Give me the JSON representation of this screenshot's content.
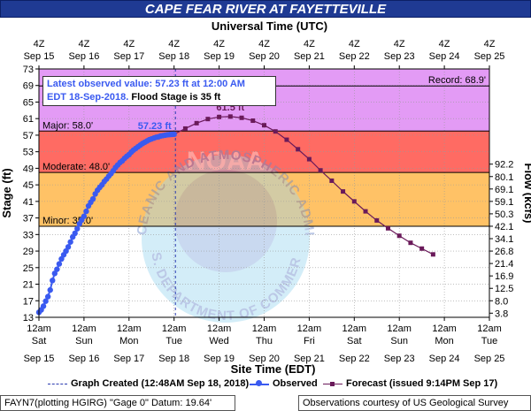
{
  "header": {
    "title": "CAPE FEAR RIVER AT FAYETTEVILLE",
    "title_bg": "#1f3a93"
  },
  "info_box": {
    "line1": "Latest observed value: 57.23 ft at 12:00 AM",
    "line2": "EDT 18-Sep-2018.",
    "line2b": "Flood Stage is 35 ft"
  },
  "watermark": {
    "center_text": "NOAA",
    "arc_top": "NATIONAL OCEANIC AND ATMOSPHERIC ADMINISTRATION",
    "arc_bottom": "U.S. DEPARTMENT OF COMMERCE"
  },
  "footer": {
    "legend_graph_created": "Graph Created (12:48AM Sep 18, 2018)",
    "legend_observed": "Observed",
    "legend_forecast": "Forecast (issued 9:14PM Sep 17)",
    "gauge_info": "FAYN7(plotting HGIRG) \"Gage 0\" Datum: 19.64'",
    "credit": "Observations courtesy of US Geological Survey"
  },
  "chart_data": {
    "type": "line",
    "title": "CAPE FEAR RIVER AT FAYETTEVILLE",
    "top_axis_title": "Universal Time (UTC)",
    "bottom_axis_title": "Site Time (EDT)",
    "ylabel_left": "Stage (ft)",
    "ylabel_right": "Flow (kcfs)",
    "ylim": [
      13,
      73
    ],
    "y_ticks": [
      13,
      17,
      21,
      25,
      29,
      33,
      37,
      41,
      45,
      49,
      53,
      57,
      61,
      65,
      69,
      73
    ],
    "right_axis_ticks": [
      {
        "stage": 14,
        "label": "3.8"
      },
      {
        "stage": 17,
        "label": "8.0"
      },
      {
        "stage": 20,
        "label": "12.5"
      },
      {
        "stage": 23,
        "label": "16.9"
      },
      {
        "stage": 26,
        "label": "21.4"
      },
      {
        "stage": 29,
        "label": "26.8"
      },
      {
        "stage": 32,
        "label": "34.1"
      },
      {
        "stage": 35,
        "label": "42.1"
      },
      {
        "stage": 38,
        "label": "50.3"
      },
      {
        "stage": 41,
        "label": "59.1"
      },
      {
        "stage": 44,
        "label": "69.1"
      },
      {
        "stage": 47,
        "label": "80.1"
      },
      {
        "stage": 50,
        "label": "92.2"
      }
    ],
    "x_days": [
      {
        "top1": "4Z",
        "top2": "Sep 15",
        "b1": "12am",
        "b2": "Sat",
        "b3": "Sep 15"
      },
      {
        "top1": "4Z",
        "top2": "Sep 16",
        "b1": "12am",
        "b2": "Sun",
        "b3": "Sep 16"
      },
      {
        "top1": "4Z",
        "top2": "Sep 17",
        "b1": "12am",
        "b2": "Mon",
        "b3": "Sep 17"
      },
      {
        "top1": "4Z",
        "top2": "Sep 18",
        "b1": "12am",
        "b2": "Tue",
        "b3": "Sep 18"
      },
      {
        "top1": "4Z",
        "top2": "Sep 19",
        "b1": "12am",
        "b2": "Wed",
        "b3": "Sep 19"
      },
      {
        "top1": "4Z",
        "top2": "Sep 20",
        "b1": "12am",
        "b2": "Thu",
        "b3": "Sep 20"
      },
      {
        "top1": "4Z",
        "top2": "Sep 21",
        "b1": "12am",
        "b2": "Fri",
        "b3": "Sep 21"
      },
      {
        "top1": "4Z",
        "top2": "Sep 22",
        "b1": "12am",
        "b2": "Sat",
        "b3": "Sep 22"
      },
      {
        "top1": "4Z",
        "top2": "Sep 23",
        "b1": "12am",
        "b2": "Sun",
        "b3": "Sep 23"
      },
      {
        "top1": "4Z",
        "top2": "Sep 24",
        "b1": "12am",
        "b2": "Mon",
        "b3": "Sep 24"
      },
      {
        "top1": "4Z",
        "top2": "Sep 25",
        "b1": "12am",
        "b2": "Tue",
        "b3": "Sep 25"
      }
    ],
    "bands": [
      {
        "from": 58,
        "to": 73,
        "color": "#e39bf5"
      },
      {
        "from": 48,
        "to": 58,
        "color": "#ff6b63"
      },
      {
        "from": 35,
        "to": 48,
        "color": "#ffc266"
      },
      {
        "from": 13,
        "to": 35,
        "color": "#ffffff"
      }
    ],
    "thresholds": [
      {
        "label": "Record: 68.9'",
        "value": 68.9,
        "side": "right"
      },
      {
        "label": "Major: 58.0'",
        "value": 58.0,
        "side": "left"
      },
      {
        "label": "Moderate: 48.0'",
        "value": 48.0,
        "side": "left"
      },
      {
        "label": "Minor: 35.0'",
        "value": 35.0,
        "side": "left"
      }
    ],
    "observed_color": "#3a5af0",
    "forecast_color": "#6a1a5a",
    "graph_created_day": 3.03,
    "observed": {
      "name": "Observed",
      "x": [
        0,
        0.05,
        0.1,
        0.15,
        0.2,
        0.25,
        0.3,
        0.35,
        0.4,
        0.45,
        0.5,
        0.55,
        0.6,
        0.65,
        0.7,
        0.75,
        0.8,
        0.85,
        0.9,
        0.95,
        1.0,
        1.05,
        1.1,
        1.15,
        1.2,
        1.25,
        1.3,
        1.35,
        1.4,
        1.45,
        1.5,
        1.55,
        1.6,
        1.65,
        1.7,
        1.75,
        1.8,
        1.85,
        1.9,
        1.95,
        2.0,
        2.05,
        2.1,
        2.15,
        2.2,
        2.25,
        2.3,
        2.35,
        2.4,
        2.45,
        2.5,
        2.55,
        2.6,
        2.65,
        2.7,
        2.75,
        2.8,
        2.85,
        2.9,
        2.95,
        3.0
      ],
      "values": [
        14.2,
        14.8,
        15.7,
        16.9,
        18.0,
        19.6,
        21.9,
        23.6,
        24.6,
        25.9,
        27.1,
        28.1,
        29.0,
        30.0,
        31.2,
        32.4,
        33.3,
        34.4,
        35.6,
        36.5,
        37.4,
        38.6,
        39.9,
        40.8,
        41.6,
        42.8,
        43.7,
        44.4,
        45.0,
        45.8,
        46.4,
        47.1,
        47.7,
        48.4,
        49.2,
        49.8,
        50.4,
        50.8,
        51.4,
        51.9,
        52.3,
        52.9,
        53.4,
        53.8,
        54.2,
        54.6,
        55.0,
        55.3,
        55.6,
        55.9,
        56.1,
        56.3,
        56.5,
        56.6,
        56.8,
        56.9,
        57.0,
        57.1,
        57.15,
        57.2,
        57.23
      ]
    },
    "forecast": {
      "name": "Forecast (issued 9:14PM Sep 17)",
      "x": [
        3.0,
        3.25,
        3.5,
        3.75,
        4.0,
        4.25,
        4.5,
        4.75,
        5.0,
        5.25,
        5.5,
        5.75,
        6.0,
        6.25,
        6.5,
        6.75,
        7.0,
        7.25,
        7.5,
        7.75,
        8.0,
        8.25,
        8.5,
        8.75
      ],
      "values": [
        57.23,
        58.6,
        59.9,
        60.9,
        61.4,
        61.5,
        61.2,
        60.5,
        59.4,
        57.9,
        55.9,
        53.6,
        51.2,
        48.5,
        46.0,
        43.4,
        41.0,
        38.6,
        36.4,
        34.5,
        32.7,
        31.0,
        29.6,
        28.2
      ]
    },
    "annotations": [
      {
        "text": "57.23 ft",
        "x": 3.0,
        "y": 57.23,
        "color": "#3a5af0"
      },
      {
        "text": "61.5 ft",
        "x": 4.25,
        "y": 61.5,
        "color": "#6a1a5a"
      }
    ]
  }
}
